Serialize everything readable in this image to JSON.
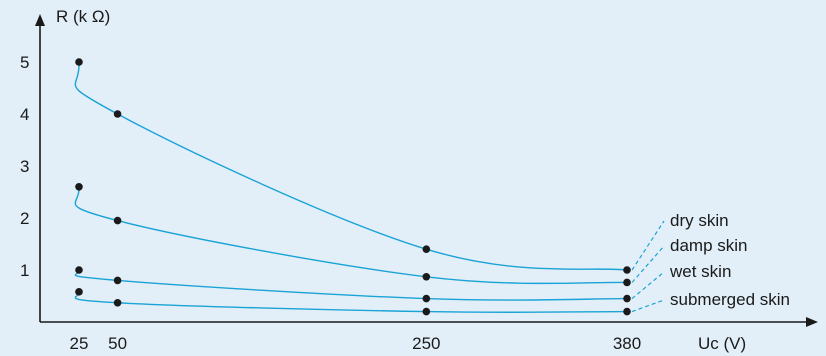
{
  "colors": {
    "background": "#e2eff8",
    "curve": "#1aa3d6",
    "axis": "#1a1a1a"
  },
  "chart_data": {
    "type": "line",
    "title": "",
    "xlabel": "Uc (V)",
    "ylabel": "R (k Ω)",
    "x_ticks": [
      25,
      50,
      250,
      380
    ],
    "y_ticks": [
      1,
      2,
      3,
      4,
      5
    ],
    "xlim": [
      0,
      490
    ],
    "ylim": [
      0,
      5.6
    ],
    "x": [
      25,
      50,
      250,
      380
    ],
    "series": [
      {
        "name": "dry skin",
        "values": [
          5.0,
          4.0,
          1.4,
          1.0
        ]
      },
      {
        "name": "damp skin",
        "values": [
          2.6,
          1.95,
          0.87,
          0.76
        ]
      },
      {
        "name": "wet skin",
        "values": [
          1.0,
          0.8,
          0.45,
          0.45
        ]
      },
      {
        "name": "submerged skin",
        "values": [
          0.58,
          0.37,
          0.2,
          0.2
        ]
      }
    ],
    "grid": false,
    "legend": "right"
  }
}
